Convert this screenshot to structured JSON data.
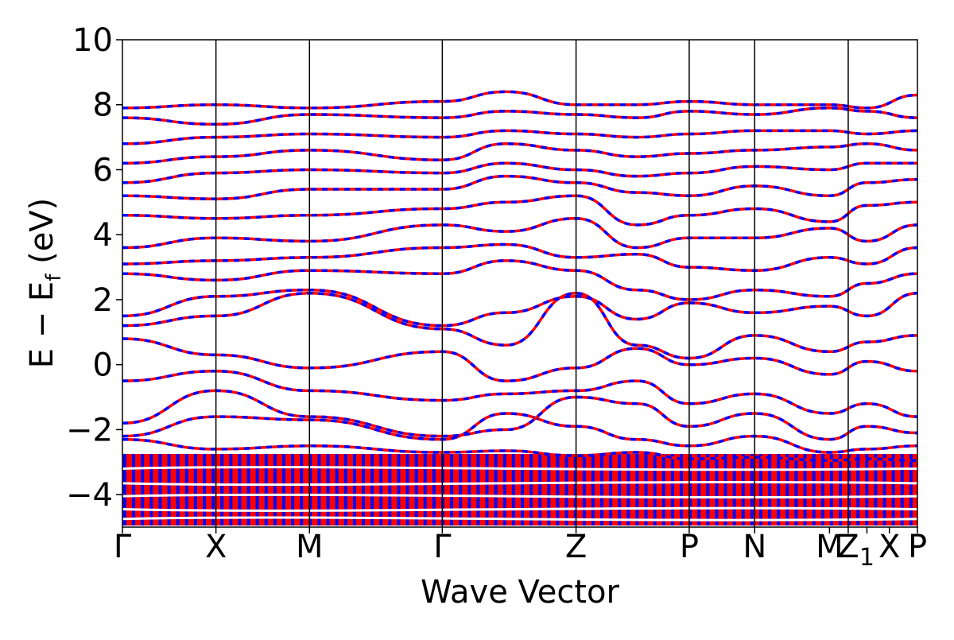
{
  "chart_data": {
    "type": "line",
    "title": "",
    "xlabel": "Wave Vector",
    "ylabel_main": "E − E",
    "ylabel_sub": "f",
    "ylabel_unit": " (eV)",
    "ylim": [
      -5,
      10
    ],
    "yticks": [
      -4,
      -2,
      0,
      2,
      4,
      6,
      8,
      10
    ],
    "ytick_labels": [
      "−4",
      "−2",
      "0",
      "2",
      "4",
      "6",
      "8",
      "10"
    ],
    "kpoints": [
      {
        "label": "Γ",
        "x": 0.0
      },
      {
        "label": "X",
        "x": 1.0
      },
      {
        "label": "M",
        "x": 2.0
      },
      {
        "label": "Γ",
        "x": 3.42
      },
      {
        "label": "Z",
        "x": 4.85
      },
      {
        "label": "P",
        "x": 6.06
      },
      {
        "label": "N",
        "x": 6.76
      },
      {
        "label": "M",
        "x": 7.56
      },
      {
        "label": "Z",
        "x": 7.76
      },
      {
        "label": "1",
        "x": 7.96
      },
      {
        "label": "X",
        "x": 8.2
      },
      {
        "label": "P",
        "x": 8.5
      }
    ],
    "kpoint_lines": [
      1.0,
      2.0,
      3.42,
      4.85,
      6.06,
      6.76,
      7.76
    ],
    "xlim": [
      0,
      8.5
    ],
    "grid": false,
    "series_colors": [
      "#ff0000",
      "#0000ff"
    ],
    "bands": [
      [
        -2.3,
        -2.6,
        -2.5,
        -2.7,
        -2.65,
        -2.8,
        -2.7,
        -2.9,
        -2.85,
        -2.95,
        -2.9,
        -2.95
      ],
      [
        -2.2,
        -1.6,
        -1.7,
        -2.3,
        -1.5,
        -1.9,
        -2.3,
        -2.5,
        -2.2,
        -2.7,
        -2.6,
        -2.5
      ],
      [
        -1.8,
        -0.8,
        -1.6,
        -2.2,
        -2.0,
        -1.0,
        -1.2,
        -1.9,
        -1.5,
        -2.3,
        -1.9,
        -2.1
      ],
      [
        -0.5,
        -0.2,
        -0.8,
        -1.1,
        -0.9,
        -0.8,
        -0.5,
        -1.2,
        -0.9,
        -1.5,
        -1.2,
        -1.6
      ],
      [
        0.8,
        0.3,
        -0.1,
        0.4,
        -0.5,
        -0.1,
        0.5,
        0.0,
        0.2,
        -0.3,
        0.1,
        -0.2
      ],
      [
        1.2,
        1.5,
        2.2,
        1.1,
        0.6,
        2.2,
        0.6,
        0.2,
        0.9,
        0.4,
        0.7,
        0.9
      ],
      [
        1.5,
        2.1,
        2.3,
        1.2,
        1.6,
        2.1,
        1.4,
        1.9,
        1.6,
        1.8,
        1.5,
        2.2
      ],
      [
        2.8,
        2.6,
        2.9,
        2.8,
        3.2,
        2.9,
        2.3,
        2.0,
        2.3,
        2.1,
        2.5,
        2.8
      ],
      [
        3.1,
        3.2,
        3.3,
        3.6,
        3.7,
        3.3,
        3.4,
        3.0,
        2.9,
        3.3,
        3.1,
        3.6
      ],
      [
        3.6,
        3.9,
        3.8,
        4.3,
        4.1,
        4.5,
        3.6,
        3.9,
        3.9,
        4.2,
        3.8,
        4.3
      ],
      [
        4.6,
        4.5,
        4.6,
        4.8,
        5.0,
        5.2,
        4.3,
        4.6,
        4.8,
        4.4,
        4.9,
        5.0
      ],
      [
        5.2,
        5.1,
        5.4,
        5.4,
        5.8,
        5.6,
        5.3,
        5.2,
        5.5,
        5.2,
        5.6,
        5.7
      ],
      [
        5.6,
        5.9,
        6.0,
        5.9,
        6.2,
        6.0,
        5.8,
        5.9,
        6.1,
        6.0,
        6.2,
        6.2
      ],
      [
        6.2,
        6.4,
        6.6,
        6.3,
        6.8,
        6.6,
        6.4,
        6.5,
        6.6,
        6.7,
        6.8,
        6.6
      ],
      [
        6.8,
        7.0,
        7.1,
        7.0,
        7.2,
        7.1,
        7.0,
        7.1,
        7.2,
        7.2,
        7.1,
        7.2
      ],
      [
        7.6,
        7.4,
        7.7,
        7.6,
        7.8,
        7.7,
        7.6,
        7.8,
        7.7,
        7.9,
        7.8,
        7.6
      ],
      [
        7.9,
        8.0,
        7.9,
        8.1,
        8.4,
        8.0,
        8.0,
        8.1,
        8.0,
        8.0,
        7.9,
        8.3
      ]
    ],
    "band_x": [
      0.0,
      1.0,
      2.0,
      3.42,
      4.1,
      4.85,
      5.5,
      6.06,
      6.76,
      7.56,
      7.96,
      8.5
    ],
    "dense_region": {
      "ymin": -4.95,
      "ymax": -2.75
    }
  }
}
